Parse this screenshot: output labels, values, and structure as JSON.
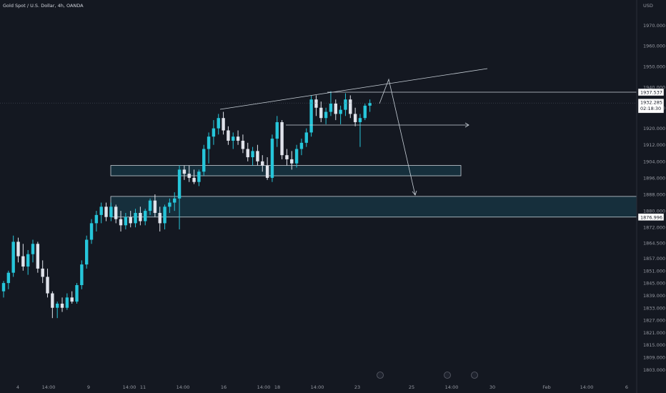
{
  "header": {
    "symbol_title": "Gold Spot / U.S. Dollar, 4h, OANDA",
    "currency": "USD"
  },
  "colors": {
    "background": "#141821",
    "bull": "#26c6da",
    "bear": "#e0e3eb",
    "zone_fill": "#163441",
    "zone_stroke": "#c8d0d8",
    "drawing": "#c8d0d8",
    "axis_text": "#9598a1"
  },
  "chart_data": {
    "type": "candlestick",
    "title": "Gold Spot / U.S. Dollar, 4h, OANDA",
    "y_unit": "USD",
    "ylim": [
      1800,
      1976
    ],
    "y_ticks": [
      "1803.000",
      "1809.000",
      "1815.000",
      "1821.000",
      "1827.000",
      "1833.000",
      "1839.000",
      "1845.000",
      "1851.000",
      "1857.000",
      "1864.500",
      "1872.000",
      "1880.000",
      "1888.000",
      "1896.000",
      "1904.000",
      "1912.000",
      "1920.000",
      "1930.000",
      "1940.000",
      "1950.000",
      "1960.000",
      "1970.000"
    ],
    "x_ticks": [
      "4",
      "14:00",
      "9",
      "14:00",
      "11",
      "14:00",
      "16",
      "14:00",
      "18",
      "14:00",
      "23",
      "25",
      "14:00",
      "30",
      "Feb",
      "14:00",
      "6"
    ],
    "price_labels": [
      {
        "text": "1937.537",
        "value": 1937.537
      },
      {
        "text": "1932.285",
        "value": 1932.285,
        "sub": "02:18:30"
      },
      {
        "text": "1876.996",
        "value": 1876.996
      }
    ],
    "candles": [
      [
        1841,
        1846,
        1838,
        1845
      ],
      [
        1845,
        1851,
        1842,
        1850
      ],
      [
        1850,
        1868,
        1848,
        1865
      ],
      [
        1865,
        1867,
        1855,
        1858
      ],
      [
        1858,
        1864,
        1851,
        1853
      ],
      [
        1853,
        1861,
        1849,
        1859
      ],
      [
        1859,
        1866,
        1855,
        1864
      ],
      [
        1864,
        1865,
        1850,
        1852
      ],
      [
        1852,
        1856,
        1845,
        1848
      ],
      [
        1848,
        1852,
        1838,
        1840
      ],
      [
        1840,
        1841,
        1828,
        1833
      ],
      [
        1833,
        1836,
        1828,
        1835
      ],
      [
        1835,
        1838,
        1831,
        1833
      ],
      [
        1833,
        1840,
        1832,
        1838
      ],
      [
        1838,
        1841,
        1835,
        1836
      ],
      [
        1836,
        1845,
        1835,
        1844
      ],
      [
        1844,
        1856,
        1842,
        1854
      ],
      [
        1854,
        1868,
        1852,
        1866
      ],
      [
        1866,
        1876,
        1864,
        1874
      ],
      [
        1874,
        1880,
        1870,
        1878
      ],
      [
        1878,
        1884,
        1874,
        1882
      ],
      [
        1882,
        1884,
        1875,
        1877
      ],
      [
        1877,
        1884,
        1875,
        1882
      ],
      [
        1882,
        1883,
        1874,
        1876
      ],
      [
        1876,
        1880,
        1870,
        1873
      ],
      [
        1873,
        1879,
        1871,
        1877
      ],
      [
        1877,
        1880,
        1872,
        1874
      ],
      [
        1874,
        1881,
        1872,
        1879
      ],
      [
        1879,
        1882,
        1873,
        1875
      ],
      [
        1875,
        1881,
        1873,
        1880
      ],
      [
        1880,
        1886,
        1878,
        1885
      ],
      [
        1885,
        1888,
        1877,
        1879
      ],
      [
        1879,
        1882,
        1870,
        1874
      ],
      [
        1874,
        1883,
        1871,
        1882
      ],
      [
        1882,
        1886,
        1879,
        1884
      ],
      [
        1884,
        1889,
        1880,
        1886
      ],
      [
        1886,
        1902,
        1871,
        1900
      ],
      [
        1900,
        1902,
        1895,
        1898
      ],
      [
        1898,
        1902,
        1894,
        1896
      ],
      [
        1896,
        1900,
        1893,
        1894
      ],
      [
        1894,
        1900,
        1892,
        1899
      ],
      [
        1899,
        1912,
        1897,
        1910
      ],
      [
        1910,
        1918,
        1903,
        1916
      ],
      [
        1916,
        1924,
        1912,
        1920
      ],
      [
        1920,
        1927,
        1917,
        1925
      ],
      [
        1925,
        1928,
        1917,
        1919
      ],
      [
        1919,
        1921,
        1912,
        1914
      ],
      [
        1914,
        1918,
        1910,
        1916
      ],
      [
        1916,
        1919,
        1912,
        1914
      ],
      [
        1914,
        1917,
        1908,
        1910
      ],
      [
        1910,
        1913,
        1904,
        1906
      ],
      [
        1906,
        1911,
        1902,
        1909
      ],
      [
        1909,
        1912,
        1902,
        1904
      ],
      [
        1904,
        1907,
        1899,
        1902
      ],
      [
        1902,
        1906,
        1895,
        1896
      ],
      [
        1896,
        1917,
        1894,
        1915
      ],
      [
        1915,
        1926,
        1911,
        1923
      ],
      [
        1923,
        1924,
        1905,
        1907
      ],
      [
        1907,
        1910,
        1902,
        1905
      ],
      [
        1905,
        1909,
        1900,
        1903
      ],
      [
        1903,
        1912,
        1901,
        1910
      ],
      [
        1910,
        1915,
        1907,
        1913
      ],
      [
        1913,
        1920,
        1911,
        1918
      ],
      [
        1918,
        1936,
        1916,
        1934
      ],
      [
        1934,
        1936,
        1926,
        1930
      ],
      [
        1930,
        1933,
        1923,
        1925
      ],
      [
        1925,
        1930,
        1922,
        1928
      ],
      [
        1928,
        1938,
        1926,
        1932
      ],
      [
        1932,
        1934,
        1924,
        1927
      ],
      [
        1927,
        1931,
        1922,
        1929
      ],
      [
        1929,
        1937,
        1926,
        1934
      ],
      [
        1934,
        1936,
        1925,
        1927
      ],
      [
        1927,
        1930,
        1921,
        1923
      ],
      [
        1923,
        1927,
        1911,
        1925
      ],
      [
        1925,
        1932,
        1924,
        1931
      ],
      [
        1931,
        1934,
        1928,
        1932.285
      ]
    ],
    "annotations": {
      "zones": [
        {
          "top": 1902,
          "bottom": 1897
        },
        {
          "top": 1887,
          "bottom": 1876.996
        }
      ],
      "levels": [
        1937.537
      ]
    }
  }
}
